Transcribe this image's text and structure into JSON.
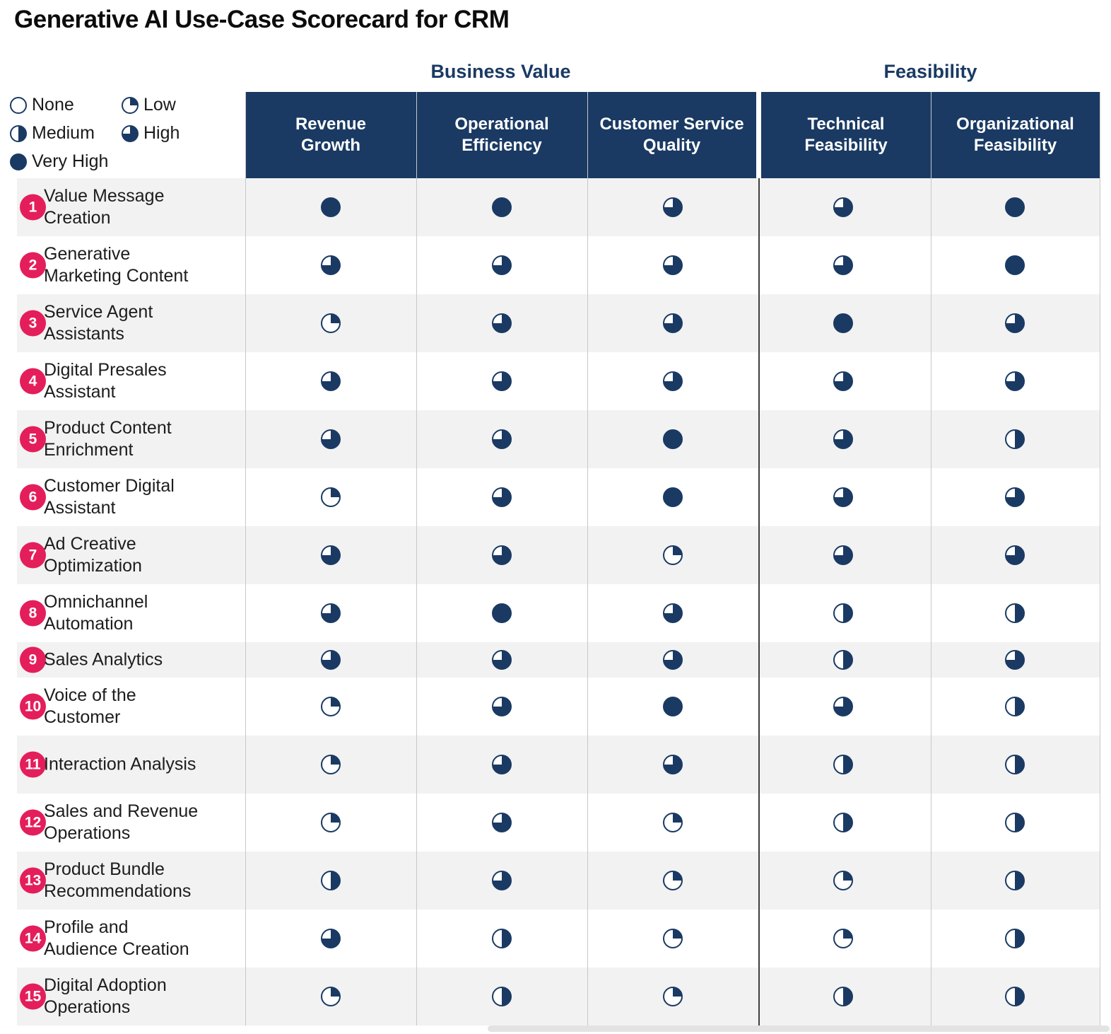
{
  "title": "Generative AI Use-Case Scorecard for CRM",
  "colors": {
    "navy": "#1a3a63",
    "pink": "#e41e5b",
    "stripe": "#f2f2f2",
    "divider_light": "#c8c8c8",
    "divider_dark": "#3f3f3f"
  },
  "legend": {
    "items": [
      {
        "label": "None",
        "level": "none"
      },
      {
        "label": "Low",
        "level": "low"
      },
      {
        "label": "Medium",
        "level": "medium"
      },
      {
        "label": "High",
        "level": "high"
      },
      {
        "label": "Very High",
        "level": "very-high"
      }
    ]
  },
  "chart_data": {
    "type": "table",
    "title": "Generative AI Use-Case Scorecard for CRM",
    "legend_scale": {
      "none": 0,
      "low": 25,
      "medium": 50,
      "high": 75,
      "very-high": 100
    },
    "column_groups": [
      {
        "label": "Business Value",
        "columns": [
          0,
          1,
          2
        ]
      },
      {
        "label": "Feasibility",
        "columns": [
          3,
          4
        ]
      }
    ],
    "columns": [
      "Revenue Growth",
      "Operational Efficiency",
      "Customer Service Quality",
      "Technical Feasibility",
      "Organizational Feasibility"
    ],
    "rows": [
      {
        "num": 1,
        "label": "Value Message Creation",
        "scores": [
          "very-high",
          "very-high",
          "high",
          "high",
          "very-high"
        ]
      },
      {
        "num": 2,
        "label": "Generative Marketing Content",
        "scores": [
          "high",
          "high",
          "high",
          "high",
          "very-high"
        ]
      },
      {
        "num": 3,
        "label": "Service Agent Assistants",
        "scores": [
          "low",
          "high",
          "high",
          "very-high",
          "high"
        ]
      },
      {
        "num": 4,
        "label": "Digital Presales Assistant",
        "scores": [
          "high",
          "high",
          "high",
          "high",
          "high"
        ]
      },
      {
        "num": 5,
        "label": "Product Content Enrichment",
        "scores": [
          "high",
          "high",
          "very-high",
          "high",
          "medium"
        ]
      },
      {
        "num": 6,
        "label": "Customer Digital Assistant",
        "scores": [
          "low",
          "high",
          "very-high",
          "high",
          "high"
        ]
      },
      {
        "num": 7,
        "label": "Ad Creative Optimization",
        "scores": [
          "high",
          "high",
          "low",
          "high",
          "high"
        ]
      },
      {
        "num": 8,
        "label": "Omnichannel Automation",
        "scores": [
          "high",
          "very-high",
          "high",
          "medium",
          "medium"
        ]
      },
      {
        "num": 9,
        "label": "Sales Analytics",
        "scores": [
          "high",
          "high",
          "high",
          "medium",
          "high"
        ]
      },
      {
        "num": 10,
        "label": "Voice of the Customer",
        "scores": [
          "low",
          "high",
          "very-high",
          "high",
          "medium"
        ]
      },
      {
        "num": 11,
        "label": "Interaction Analysis",
        "scores": [
          "low",
          "high",
          "high",
          "medium",
          "medium"
        ]
      },
      {
        "num": 12,
        "label": "Sales and Revenue Operations",
        "scores": [
          "low",
          "high",
          "low",
          "medium",
          "medium"
        ]
      },
      {
        "num": 13,
        "label": "Product Bundle Recommendations",
        "scores": [
          "medium",
          "high",
          "low",
          "low",
          "medium"
        ]
      },
      {
        "num": 14,
        "label": "Profile and Audience Creation",
        "scores": [
          "high",
          "medium",
          "low",
          "low",
          "medium"
        ]
      },
      {
        "num": 15,
        "label": "Digital Adoption Operations",
        "scores": [
          "low",
          "medium",
          "low",
          "medium",
          "medium"
        ]
      }
    ]
  }
}
